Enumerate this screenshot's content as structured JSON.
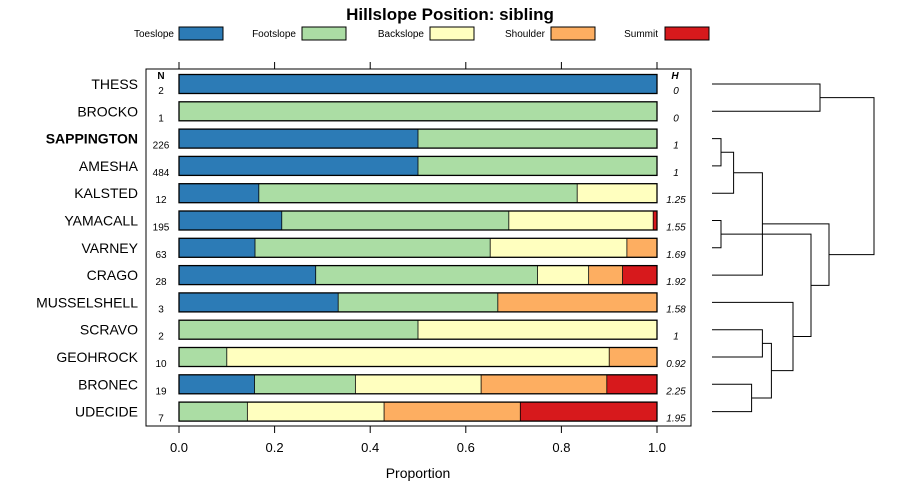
{
  "chart_data": {
    "type": "bar",
    "orientation": "horizontal-stacked",
    "title": "Hillslope Position: sibling",
    "xlabel": "Proportion",
    "ylabel": "",
    "xlim": [
      0,
      1
    ],
    "x_ticks": [
      "0.0",
      "0.2",
      "0.4",
      "0.6",
      "0.8",
      "1.0"
    ],
    "x_tick_values": [
      0,
      0.2,
      0.4,
      0.6,
      0.8,
      1.0
    ],
    "n_header": "N",
    "h_header": "H",
    "legend_placement": "top",
    "series": [
      {
        "name": "Toeslope",
        "color": "#2C7BB6"
      },
      {
        "name": "Footslope",
        "color": "#ABDDA4"
      },
      {
        "name": "Backslope",
        "color": "#FFFFBF"
      },
      {
        "name": "Shoulder",
        "color": "#FDAE61"
      },
      {
        "name": "Summit",
        "color": "#D7191C"
      }
    ],
    "rows": [
      {
        "label": "THESS",
        "bold": false,
        "n": "2",
        "h": "0",
        "values": [
          1.0,
          0,
          0,
          0,
          0
        ]
      },
      {
        "label": "BROCKO",
        "bold": false,
        "n": "1",
        "h": "0",
        "values": [
          0,
          1.0,
          0,
          0,
          0
        ]
      },
      {
        "label": "SAPPINGTON",
        "bold": true,
        "n": "226",
        "h": "1",
        "values": [
          0.5,
          0.5,
          0,
          0,
          0
        ]
      },
      {
        "label": "AMESHA",
        "bold": false,
        "n": "484",
        "h": "1",
        "values": [
          0.5,
          0.5,
          0,
          0,
          0
        ]
      },
      {
        "label": "KALSTED",
        "bold": false,
        "n": "12",
        "h": "1.25",
        "values": [
          0.167,
          0.666,
          0.167,
          0,
          0
        ]
      },
      {
        "label": "YAMACALL",
        "bold": false,
        "n": "195",
        "h": "1.55",
        "values": [
          0.215,
          0.475,
          0.302,
          0,
          0.008
        ]
      },
      {
        "label": "VARNEY",
        "bold": false,
        "n": "63",
        "h": "1.69",
        "values": [
          0.159,
          0.492,
          0.286,
          0.063,
          0
        ]
      },
      {
        "label": "CRAGO",
        "bold": false,
        "n": "28",
        "h": "1.92",
        "values": [
          0.286,
          0.464,
          0.107,
          0.071,
          0.072
        ]
      },
      {
        "label": "MUSSELSHELL",
        "bold": false,
        "n": "3",
        "h": "1.58",
        "values": [
          0.333,
          0.334,
          0,
          0.333,
          0
        ]
      },
      {
        "label": "SCRAVO",
        "bold": false,
        "n": "2",
        "h": "1",
        "values": [
          0,
          0.5,
          0.5,
          0,
          0
        ]
      },
      {
        "label": "GEOHROCK",
        "bold": false,
        "n": "10",
        "h": "0.92",
        "values": [
          0,
          0.1,
          0.8,
          0.1,
          0
        ]
      },
      {
        "label": "BRONEC",
        "bold": false,
        "n": "19",
        "h": "2.25",
        "values": [
          0.158,
          0.211,
          0.263,
          0.263,
          0.105
        ]
      },
      {
        "label": "UDECIDE",
        "bold": false,
        "n": "7",
        "h": "1.95",
        "values": [
          0,
          0.143,
          0.286,
          0.285,
          0.286
        ]
      }
    ],
    "dendrogram": {
      "merges": [
        [
          2,
          3,
          0.05
        ],
        [
          5,
          6,
          0.05
        ],
        [
          4,
          13,
          0.12
        ],
        [
          11,
          12,
          0.22
        ],
        [
          9,
          10,
          0.28
        ],
        [
          7,
          15,
          0.28
        ],
        [
          16,
          17,
          0.33
        ],
        [
          8,
          19,
          0.45
        ],
        [
          14,
          20,
          0.55
        ],
        [
          0,
          1,
          0.6
        ],
        [
          18,
          21,
          0.65
        ],
        [
          22,
          23,
          0.9
        ]
      ],
      "max_height": 1.0
    }
  }
}
